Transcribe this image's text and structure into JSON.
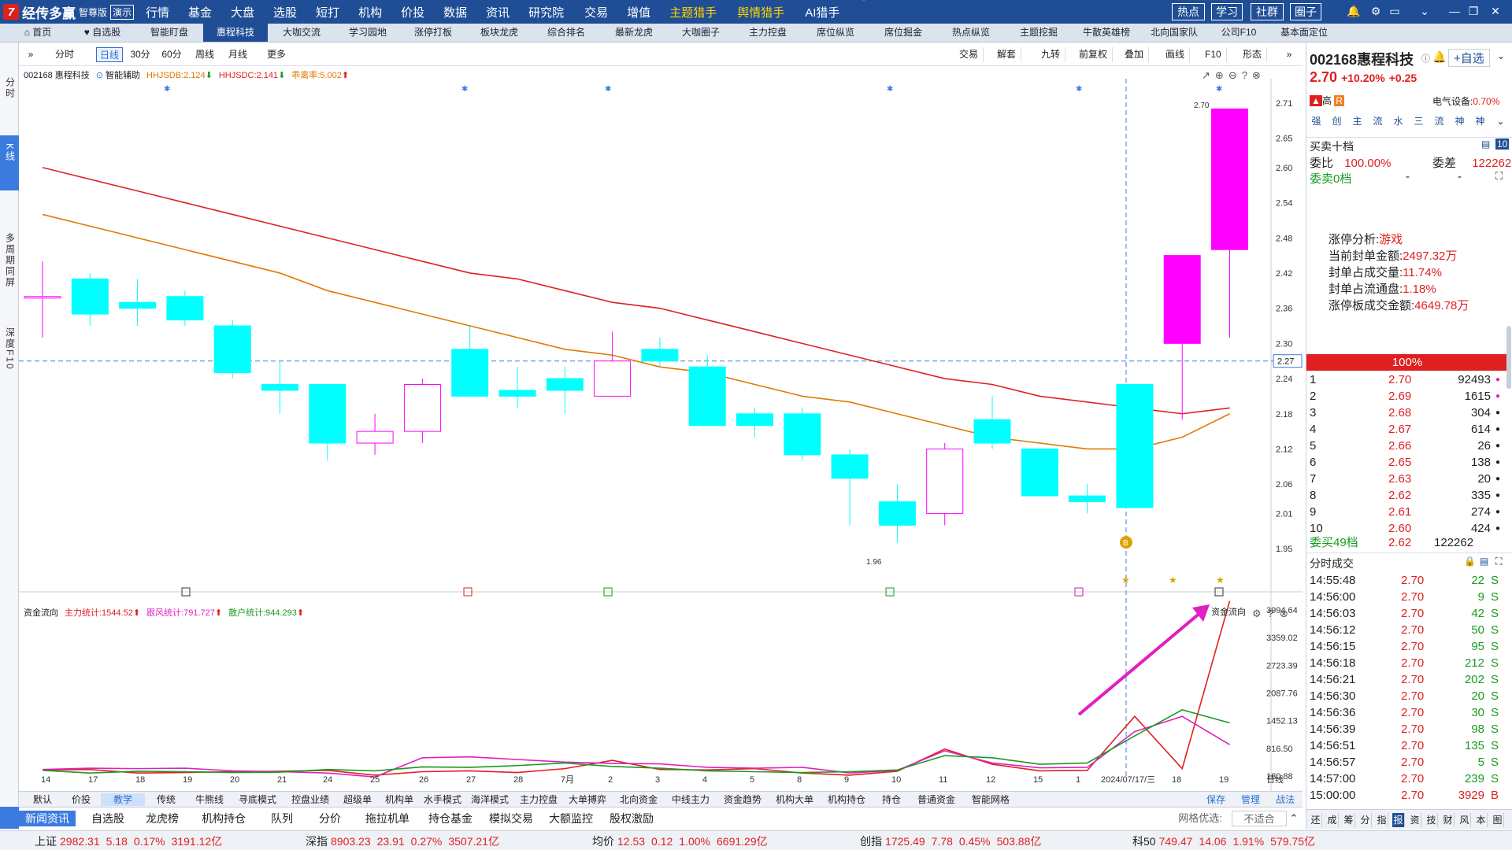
{
  "app": {
    "logo": "经传多赢",
    "edition": "智尊版",
    "demo": "演示"
  },
  "menu": [
    {
      "label": "行情"
    },
    {
      "label": "基金"
    },
    {
      "label": "大盘"
    },
    {
      "label": "选股"
    },
    {
      "label": "短打"
    },
    {
      "label": "机构"
    },
    {
      "label": "价投",
      "dot": true
    },
    {
      "label": "数据"
    },
    {
      "label": "资讯"
    },
    {
      "label": "研究院",
      "dot": true
    },
    {
      "label": "交易",
      "dot": true
    },
    {
      "label": "增值"
    },
    {
      "label": "主题猎手",
      "color": "#ffd200"
    },
    {
      "label": "舆情猎手",
      "color": "#ffd200"
    },
    {
      "label": "AI猎手",
      "dot": true
    }
  ],
  "top_buttons": [
    "热点",
    "学习",
    "社群",
    "圈子"
  ],
  "nav": [
    "首页",
    "自选股",
    "智能盯盘",
    "惠程科技",
    "大咖交流",
    "学习园地",
    "涨停打板",
    "板块龙虎",
    "综合排名",
    "最新龙虎",
    "大咖圈子",
    "主力控盘",
    "席位纵览",
    "席位掘金",
    "热点纵览",
    "主题挖掘",
    "牛散英雄榜",
    "北向国家队",
    "公司F10",
    "基本面定位"
  ],
  "nav_active": 3,
  "left_nav": [
    "分时",
    "K线",
    "多周期同屏",
    "深度F10"
  ],
  "chart_toolbar": {
    "left": [
      "分时",
      "日线",
      "30分",
      "60分",
      "周线",
      "月线",
      "更多"
    ],
    "active": 1,
    "right": [
      "交易",
      "解套",
      "九转",
      "前复权",
      "叠加",
      "画线",
      "F10",
      "形态"
    ]
  },
  "info1": {
    "code": "002168 惠程科技",
    "assist": "智能辅助",
    "hhjsdb": "HHJSDB:2.124",
    "hhjsdc": "HHJSDC:2.141",
    "qlv": "乖离率:5.002"
  },
  "info2": {
    "name": "资金流向",
    "main": "主力统计:1544.52",
    "follow": "跟风统计:791.727",
    "retail": "散户统计:944.293",
    "right_label": "资金流向"
  },
  "price_axis": [
    "2.71",
    "2.65",
    "2.60",
    "2.54",
    "2.48",
    "2.42",
    "2.36",
    "2.30",
    "2.24",
    "2.18",
    "2.12",
    "2.06",
    "2.01",
    "1.95"
  ],
  "crosshair_price": "2.27",
  "high_label": "2.70",
  "low_label": "1.96",
  "flow_axis": [
    "3994.64",
    "3359.02",
    "2723.39",
    "2087.76",
    "1452.13",
    "816.50",
    "180.88"
  ],
  "date_axis": [
    "14",
    "17",
    "18",
    "19",
    "20",
    "21",
    "24",
    "25",
    "26",
    "27",
    "28",
    "7月",
    "2",
    "3",
    "4",
    "5",
    "8",
    "9",
    "10",
    "11",
    "12",
    "15",
    "1",
    "2024/07/17/三",
    "18",
    "19",
    "日线"
  ],
  "chart_data": {
    "type": "candlestick",
    "candles": [
      {
        "o": 2.38,
        "h": 2.44,
        "l": 2.31,
        "c": 2.38
      },
      {
        "o": 2.41,
        "h": 2.42,
        "l": 2.33,
        "c": 2.35
      },
      {
        "o": 2.37,
        "h": 2.41,
        "l": 2.33,
        "c": 2.36
      },
      {
        "o": 2.38,
        "h": 2.39,
        "l": 2.33,
        "c": 2.34
      },
      {
        "o": 2.33,
        "h": 2.34,
        "l": 2.24,
        "c": 2.25
      },
      {
        "o": 2.23,
        "h": 2.27,
        "l": 2.18,
        "c": 2.22
      },
      {
        "o": 2.23,
        "h": 2.23,
        "l": 2.1,
        "c": 2.13
      },
      {
        "o": 2.13,
        "h": 2.18,
        "l": 2.11,
        "c": 2.15
      },
      {
        "o": 2.15,
        "h": 2.24,
        "l": 2.13,
        "c": 2.23
      },
      {
        "o": 2.29,
        "h": 2.33,
        "l": 2.21,
        "c": 2.21
      },
      {
        "o": 2.22,
        "h": 2.26,
        "l": 2.19,
        "c": 2.21
      },
      {
        "o": 2.24,
        "h": 2.26,
        "l": 2.18,
        "c": 2.22
      },
      {
        "o": 2.21,
        "h": 2.32,
        "l": 2.21,
        "c": 2.27
      },
      {
        "o": 2.29,
        "h": 2.31,
        "l": 2.26,
        "c": 2.27
      },
      {
        "o": 2.26,
        "h": 2.28,
        "l": 2.16,
        "c": 2.16
      },
      {
        "o": 2.18,
        "h": 2.19,
        "l": 2.14,
        "c": 2.16
      },
      {
        "o": 2.18,
        "h": 2.19,
        "l": 2.1,
        "c": 2.11
      },
      {
        "o": 2.11,
        "h": 2.12,
        "l": 1.99,
        "c": 2.07
      },
      {
        "o": 2.03,
        "h": 2.06,
        "l": 1.96,
        "c": 1.99
      },
      {
        "o": 2.01,
        "h": 2.13,
        "l": 1.99,
        "c": 2.12
      },
      {
        "o": 2.17,
        "h": 2.21,
        "l": 2.12,
        "c": 2.13
      },
      {
        "o": 2.12,
        "h": 2.12,
        "l": 2.04,
        "c": 2.04
      },
      {
        "o": 2.04,
        "h": 2.06,
        "l": 2.01,
        "c": 2.03
      },
      {
        "o": 2.23,
        "h": 2.23,
        "l": 2.02,
        "c": 2.02
      },
      {
        "o": 2.3,
        "h": 2.45,
        "l": 2.17,
        "c": 2.45
      },
      {
        "o": 2.46,
        "h": 2.7,
        "l": 2.31,
        "c": 2.7
      }
    ],
    "ma_red": [
      2.6,
      2.58,
      2.56,
      2.54,
      2.52,
      2.5,
      2.48,
      2.46,
      2.44,
      2.42,
      2.41,
      2.39,
      2.37,
      2.36,
      2.34,
      2.32,
      2.3,
      2.28,
      2.26,
      2.24,
      2.23,
      2.21,
      2.2,
      2.19,
      2.18,
      2.19
    ],
    "ma_orange": [
      2.52,
      2.5,
      2.48,
      2.46,
      2.44,
      2.42,
      2.39,
      2.37,
      2.35,
      2.33,
      2.31,
      2.29,
      2.28,
      2.26,
      2.25,
      2.23,
      2.21,
      2.2,
      2.18,
      2.16,
      2.14,
      2.13,
      2.12,
      2.12,
      2.14,
      2.18
    ],
    "flow_main": [
      320,
      330,
      250,
      260,
      280,
      290,
      310,
      200,
      280,
      300,
      260,
      350,
      540,
      330,
      320,
      350,
      250,
      200,
      290,
      800,
      450,
      300,
      310,
      1550,
      350,
      4200
    ],
    "flow_follow": [
      330,
      360,
      350,
      360,
      300,
      280,
      250,
      160,
      600,
      620,
      560,
      500,
      470,
      460,
      380,
      360,
      380,
      250,
      310,
      760,
      480,
      370,
      380,
      1200,
      1550,
      900
    ],
    "flow_retail": [
      310,
      250,
      290,
      280,
      260,
      270,
      330,
      300,
      390,
      380,
      420,
      480,
      400,
      360,
      300,
      280,
      260,
      280,
      320,
      650,
      600,
      450,
      480,
      1100,
      1700,
      1400
    ],
    "colors": {
      "up": "#ff00ff",
      "down": "#00ffff",
      "ma_red": "#e02020",
      "ma_orange": "#e07a00",
      "main": "#e02020",
      "follow": "#e020c0",
      "retail": "#1a9a20"
    }
  },
  "bottom_indicators": [
    "默认",
    "价投",
    "教学",
    "传统",
    "牛熊线",
    "寻底模式",
    "控盘业绩",
    "超级单",
    "机构单",
    "水手模式",
    "海洋模式",
    "主力控盘",
    "大单搏弈",
    "北向资金",
    "中线主力",
    "资金趋势",
    "机构大单",
    "机构持仓",
    "持仓",
    "普通资金",
    "智能网格"
  ],
  "bottom_active": 2,
  "bottom_right": [
    "保存",
    "管理",
    "战法"
  ],
  "news_tabs": [
    "新闻资讯",
    "自选股",
    "龙虎榜",
    "机构持仓",
    "队列",
    "分价",
    "拖拉机单",
    "持仓基金",
    "模拟交易",
    "大额监控",
    "股权激励"
  ],
  "news_right": {
    "label": "网格优选:",
    "value": "不适合"
  },
  "status": [
    {
      "name": "上证",
      "price": "2982.31",
      "chg": "5.18",
      "pct": "0.17%",
      "amt": "3191.12亿"
    },
    {
      "name": "深指",
      "price": "8903.23",
      "chg": "23.91",
      "pct": "0.27%",
      "amt": "3507.21亿"
    },
    {
      "name": "均价",
      "price": "12.53",
      "chg": "0.12",
      "pct": "1.00%",
      "amt": "6691.29亿"
    },
    {
      "name": "创指",
      "price": "1725.49",
      "chg": "7.78",
      "pct": "0.45%",
      "amt": "503.88亿"
    },
    {
      "name": "科50",
      "price": "749.47",
      "chg": "14.06",
      "pct": "1.91%",
      "amt": "579.75亿"
    }
  ],
  "right_tabs": [
    "还",
    "成",
    "筹",
    "分",
    "指",
    "报",
    "资",
    "技",
    "财",
    "风",
    "本",
    "图"
  ],
  "right_tabs_active": 5,
  "stock": {
    "code": "002168",
    "name": "惠程科技",
    "price": "2.70",
    "pct": "+10.20%",
    "chg": "+0.25",
    "add": "+自选",
    "tag_high": "高",
    "tag_r": "R",
    "sector": "电气设备:",
    "sector_pct": "0.70%",
    "zoom": "105%"
  },
  "flags": [
    "强",
    "创",
    "主",
    "流",
    "水",
    "三",
    "流",
    "神",
    "神"
  ],
  "orderbook": {
    "title": "买卖十档",
    "num": "10",
    "wb_label": "委比",
    "wb": "100.00%",
    "wc_label": "委差",
    "wc": "122262",
    "ask_label": "委卖0档",
    "ask_dash": "-",
    "ask_dash2": "-",
    "bar": "100%",
    "bid_label": "委买49档",
    "bid_price": "2.62",
    "bid_vol": "122262",
    "bids": [
      {
        "n": "1",
        "p": "2.70",
        "v": "92493"
      },
      {
        "n": "2",
        "p": "2.69",
        "v": "1615"
      },
      {
        "n": "3",
        "p": "2.68",
        "v": "304"
      },
      {
        "n": "4",
        "p": "2.67",
        "v": "614"
      },
      {
        "n": "5",
        "p": "2.66",
        "v": "26"
      },
      {
        "n": "6",
        "p": "2.65",
        "v": "138"
      },
      {
        "n": "7",
        "p": "2.63",
        "v": "20"
      },
      {
        "n": "8",
        "p": "2.62",
        "v": "335"
      },
      {
        "n": "9",
        "p": "2.61",
        "v": "274"
      },
      {
        "n": "10",
        "p": "2.60",
        "v": "424"
      }
    ]
  },
  "limit_analysis": {
    "l1": "涨停分析:",
    "v1": "游戏",
    "l2": "当前封单金额:",
    "v2": "2497.32万",
    "l3": "封单占成交量:",
    "v3": "11.74%",
    "l4": "封单占流通盘:",
    "v4": "1.18%",
    "l5": "涨停板成交金额:",
    "v5": "4649.78万"
  },
  "ticks_title": "分时成交",
  "ticks": [
    {
      "t": "14:55:48",
      "p": "2.70",
      "v": "22",
      "s": "S"
    },
    {
      "t": "14:56:00",
      "p": "2.70",
      "v": "9",
      "s": "S"
    },
    {
      "t": "14:56:03",
      "p": "2.70",
      "v": "42",
      "s": "S"
    },
    {
      "t": "14:56:12",
      "p": "2.70",
      "v": "50",
      "s": "S"
    },
    {
      "t": "14:56:15",
      "p": "2.70",
      "v": "95",
      "s": "S"
    },
    {
      "t": "14:56:18",
      "p": "2.70",
      "v": "212",
      "s": "S"
    },
    {
      "t": "14:56:21",
      "p": "2.70",
      "v": "202",
      "s": "S"
    },
    {
      "t": "14:56:30",
      "p": "2.70",
      "v": "20",
      "s": "S"
    },
    {
      "t": "14:56:36",
      "p": "2.70",
      "v": "30",
      "s": "S"
    },
    {
      "t": "14:56:39",
      "p": "2.70",
      "v": "98",
      "s": "S"
    },
    {
      "t": "14:56:51",
      "p": "2.70",
      "v": "135",
      "s": "S"
    },
    {
      "t": "14:56:57",
      "p": "2.70",
      "v": "5",
      "s": "S"
    },
    {
      "t": "14:57:00",
      "p": "2.70",
      "v": "239",
      "s": "S"
    },
    {
      "t": "15:00:00",
      "p": "2.70",
      "v": "3929",
      "s": "B"
    }
  ]
}
